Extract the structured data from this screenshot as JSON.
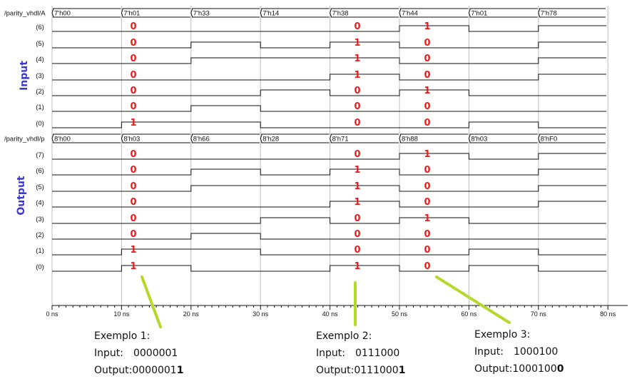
{
  "signals": {
    "bus_a": {
      "name": "/parity_vhdl/A",
      "values": [
        "7'h00",
        "7'h01",
        "7'h33",
        "7'h14",
        "7'h38",
        "7'h44",
        "7'h01",
        "7'h78"
      ],
      "bit_labels": [
        "(6)",
        "(5)",
        "(4)",
        "(3)",
        "(2)",
        "(1)",
        "(0)"
      ]
    },
    "bus_p": {
      "name": "/parity_vhdl/p",
      "values": [
        "8'h00",
        "8'h03",
        "8'h66",
        "8'h28",
        "8'h71",
        "8'h88",
        "8'h03",
        "8'hF0"
      ],
      "bit_labels": [
        "(7)",
        "(6)",
        "(5)",
        "(4)",
        "(3)",
        "(2)",
        "(1)",
        "(0)"
      ]
    }
  },
  "section_labels": {
    "input": "Input",
    "output": "Output"
  },
  "timeline": {
    "ticks": [
      "0 ns",
      "10 ns",
      "20 ns",
      "30 ns",
      "40 ns",
      "50 ns",
      "60 ns",
      "70 ns",
      "80 ns"
    ]
  },
  "annotations": {
    "input": [
      [
        "0",
        "0",
        "0",
        "0",
        "0",
        "0",
        "1"
      ],
      [
        "0",
        "1",
        "1",
        "1",
        "0",
        "0",
        "0"
      ],
      [
        "1",
        "0",
        "0",
        "0",
        "1",
        "0",
        "0"
      ]
    ],
    "output": [
      [
        "0",
        "0",
        "0",
        "0",
        "0",
        "0",
        "1",
        "1"
      ],
      [
        "0",
        "1",
        "1",
        "1",
        "0",
        "0",
        "0",
        "1"
      ],
      [
        "1",
        "0",
        "0",
        "0",
        "1",
        "0",
        "0",
        "0"
      ]
    ]
  },
  "examples": [
    {
      "title": "Exemplo 1:",
      "input_label": "Input:",
      "input_value": "0000001",
      "output_label": "Output:",
      "output_value_main": "0000001",
      "output_value_bit": "1"
    },
    {
      "title": "Exemplo 2:",
      "input_label": "Input:",
      "input_value": "0111000",
      "output_label": "Output:",
      "output_value_main": "0111000",
      "output_value_bit": "1"
    },
    {
      "title": "Exemplo 3:",
      "input_label": "Input:",
      "input_value": "1000100",
      "output_label": "Output:",
      "output_value_main": "1000100",
      "output_value_bit": "0"
    }
  ],
  "colors": {
    "annotation_red": "#e81c1c",
    "pointer_green": "#b5d82c",
    "label_blue": "#3a3ac8",
    "wave_line": "#111111"
  }
}
